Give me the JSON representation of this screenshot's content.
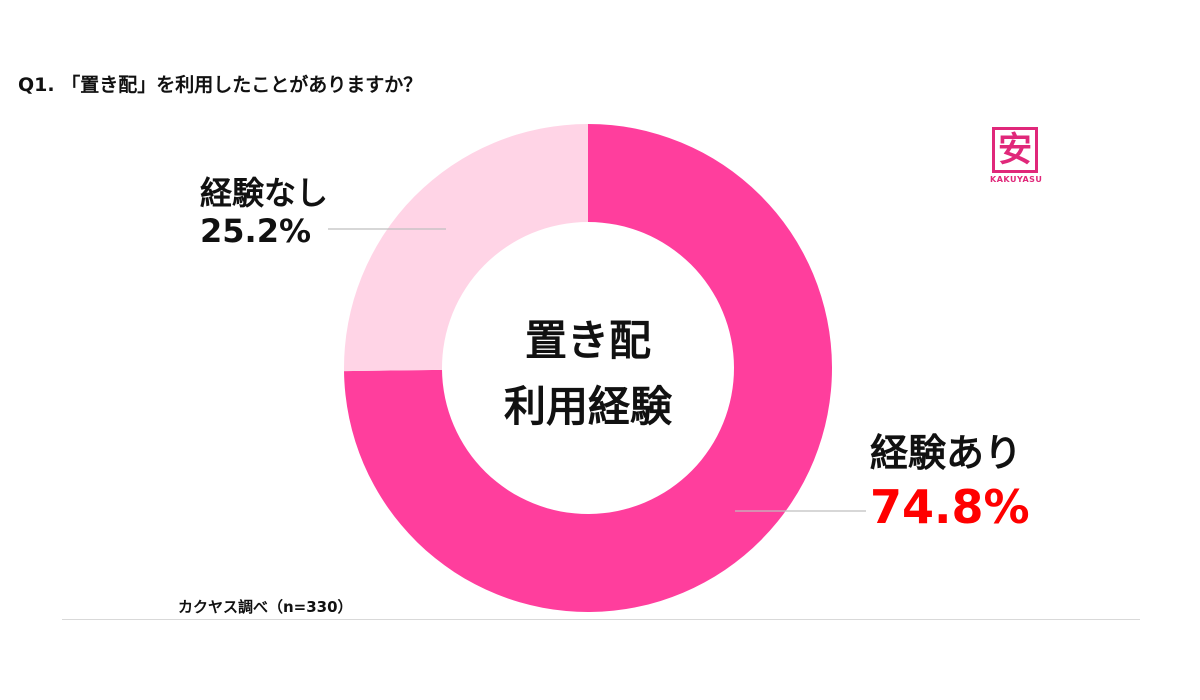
{
  "question": "Q1. 「置き配」を利用したことがありますか？",
  "logo": {
    "kanji": "安",
    "text": "KAKUYASU"
  },
  "source": "カクヤス調べ（n=330）",
  "center_label": {
    "line1": "置き配",
    "line2": "利用経験"
  },
  "colors": {
    "yes": "#ff3e9d",
    "no": "#ffd4e6",
    "yes_pct": "#ff0000",
    "leader": "#bfbfbf"
  },
  "chart_data": {
    "type": "pie",
    "donut": true,
    "n": 330,
    "slices": [
      {
        "label": "経験あり",
        "value": 74.8,
        "display": "74.8%"
      },
      {
        "label": "経験なし",
        "value": 25.2,
        "display": "25.2%"
      }
    ]
  }
}
